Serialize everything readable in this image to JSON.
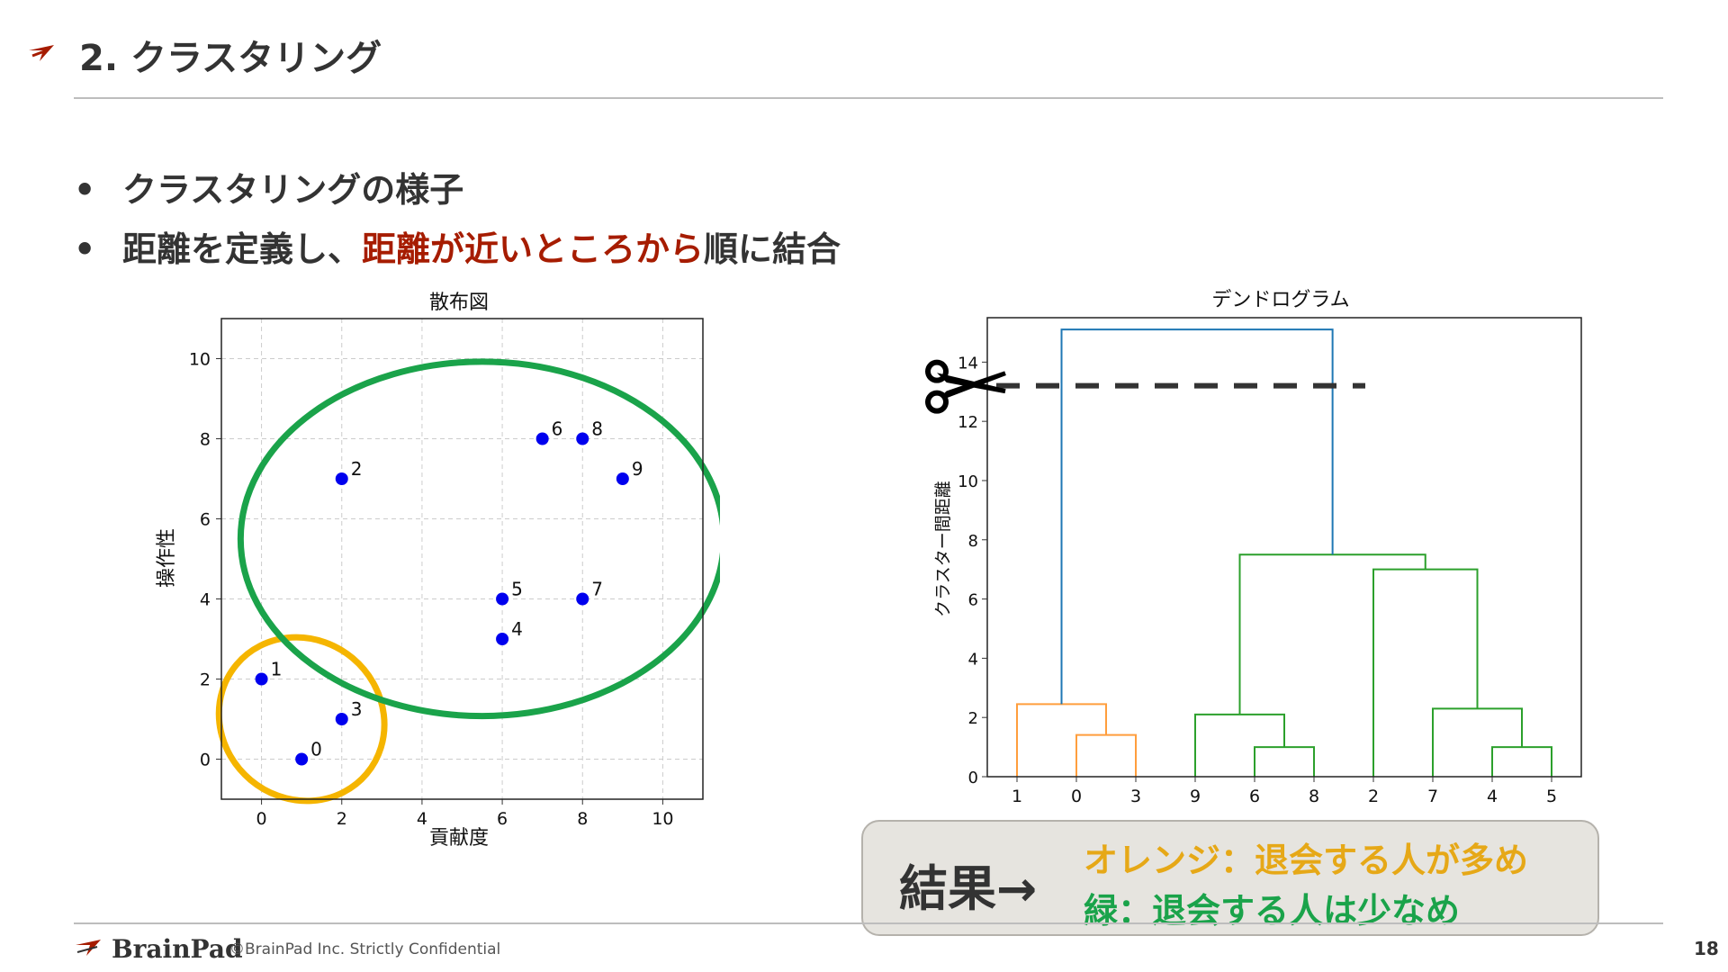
{
  "slide": {
    "title": "2. クラスタリング",
    "bullets": [
      {
        "plain": "クラスタリングの様子"
      },
      {
        "plain_before": "距離を定義し、",
        "emphasis": "距離が近いところから",
        "plain_after": "順に結合"
      }
    ],
    "emphasis_color": "#a61c00"
  },
  "result": {
    "label": "結果→",
    "line1": "オレンジ：退会する人が多め",
    "line2": "緑：退会する人は少なめ",
    "line1_color": "#e6a817",
    "line2_color": "#1aa34a"
  },
  "footer": {
    "brand": "BrainPad",
    "copyright": "©BrainPad Inc.  Strictly Confidential",
    "page_number": "18"
  },
  "chart_data": [
    {
      "type": "scatter",
      "title": "散布図",
      "xlabel": "貢献度",
      "ylabel": "操作性",
      "xlim": [
        -1,
        11
      ],
      "ylim": [
        -1,
        11
      ],
      "xticks": [
        0,
        2,
        4,
        6,
        8,
        10
      ],
      "yticks": [
        0,
        2,
        4,
        6,
        8,
        10
      ],
      "grid": true,
      "point_color": "#0000ee",
      "points": [
        {
          "label": "0",
          "x": 1,
          "y": 0
        },
        {
          "label": "1",
          "x": 0,
          "y": 2
        },
        {
          "label": "2",
          "x": 2,
          "y": 7
        },
        {
          "label": "3",
          "x": 2,
          "y": 1
        },
        {
          "label": "4",
          "x": 6,
          "y": 3
        },
        {
          "label": "5",
          "x": 6,
          "y": 4
        },
        {
          "label": "6",
          "x": 7,
          "y": 8
        },
        {
          "label": "7",
          "x": 8,
          "y": 4
        },
        {
          "label": "8",
          "x": 8,
          "y": 8
        },
        {
          "label": "9",
          "x": 9,
          "y": 7
        }
      ],
      "cluster_outlines": [
        {
          "cluster": "orange",
          "color": "#f5b500",
          "members": [
            "0",
            "1",
            "3"
          ]
        },
        {
          "cluster": "green",
          "color": "#1aa34a",
          "members": [
            "2",
            "4",
            "5",
            "6",
            "7",
            "8",
            "9"
          ]
        }
      ]
    },
    {
      "type": "dendrogram",
      "title": "デンドログラム",
      "ylabel": "クラスター間距離",
      "ylim": [
        0,
        15.5
      ],
      "yticks": [
        0,
        2,
        4,
        6,
        8,
        10,
        12,
        14
      ],
      "leaf_order": [
        "1",
        "0",
        "3",
        "9",
        "6",
        "8",
        "2",
        "7",
        "4",
        "5"
      ],
      "cut_height": 13.2,
      "colors": {
        "orange": "#ff9e3d",
        "green": "#2ca02c",
        "link": "#1f77b4"
      },
      "merges": [
        {
          "left": "0",
          "right": "3",
          "height": 1.41,
          "color": "orange"
        },
        {
          "left": "1",
          "right": "0+3",
          "height": 2.45,
          "color": "orange"
        },
        {
          "left": "6",
          "right": "8",
          "height": 1.0,
          "color": "green"
        },
        {
          "left": "9",
          "right": "6+8",
          "height": 2.1,
          "color": "green"
        },
        {
          "left": "4",
          "right": "5",
          "height": 1.0,
          "color": "green"
        },
        {
          "left": "7",
          "right": "4+5",
          "height": 2.3,
          "color": "green"
        },
        {
          "left": "2",
          "right": "7+4+5",
          "height": 7.0,
          "color": "green"
        },
        {
          "left": "9+6+8",
          "right": "2+7+4+5",
          "height": 7.5,
          "color": "green"
        },
        {
          "left": "orange",
          "right": "green",
          "height": 15.1,
          "color": "link"
        }
      ]
    }
  ]
}
